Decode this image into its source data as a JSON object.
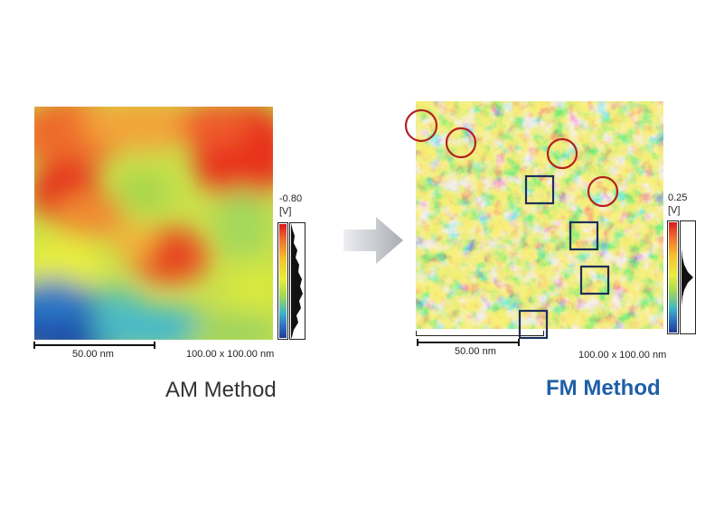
{
  "am": {
    "title": "AM Method",
    "colorbar_max": "-0.80",
    "colorbar_unit": "[V]",
    "scale_label": "50.00 nm",
    "size_label": "100.00 x 100.00 nm"
  },
  "fm": {
    "title": "FM Method",
    "colorbar_max": "0.25",
    "colorbar_unit": "[V]",
    "scale_label": "50.00 nm",
    "size_label": "100.00 x 100.00 nm"
  },
  "colors": {
    "fm_title": "#1f5fa8",
    "circle_marker": "#b22222",
    "square_marker": "#1c2f5a",
    "arrow": "#b5b8bd"
  }
}
